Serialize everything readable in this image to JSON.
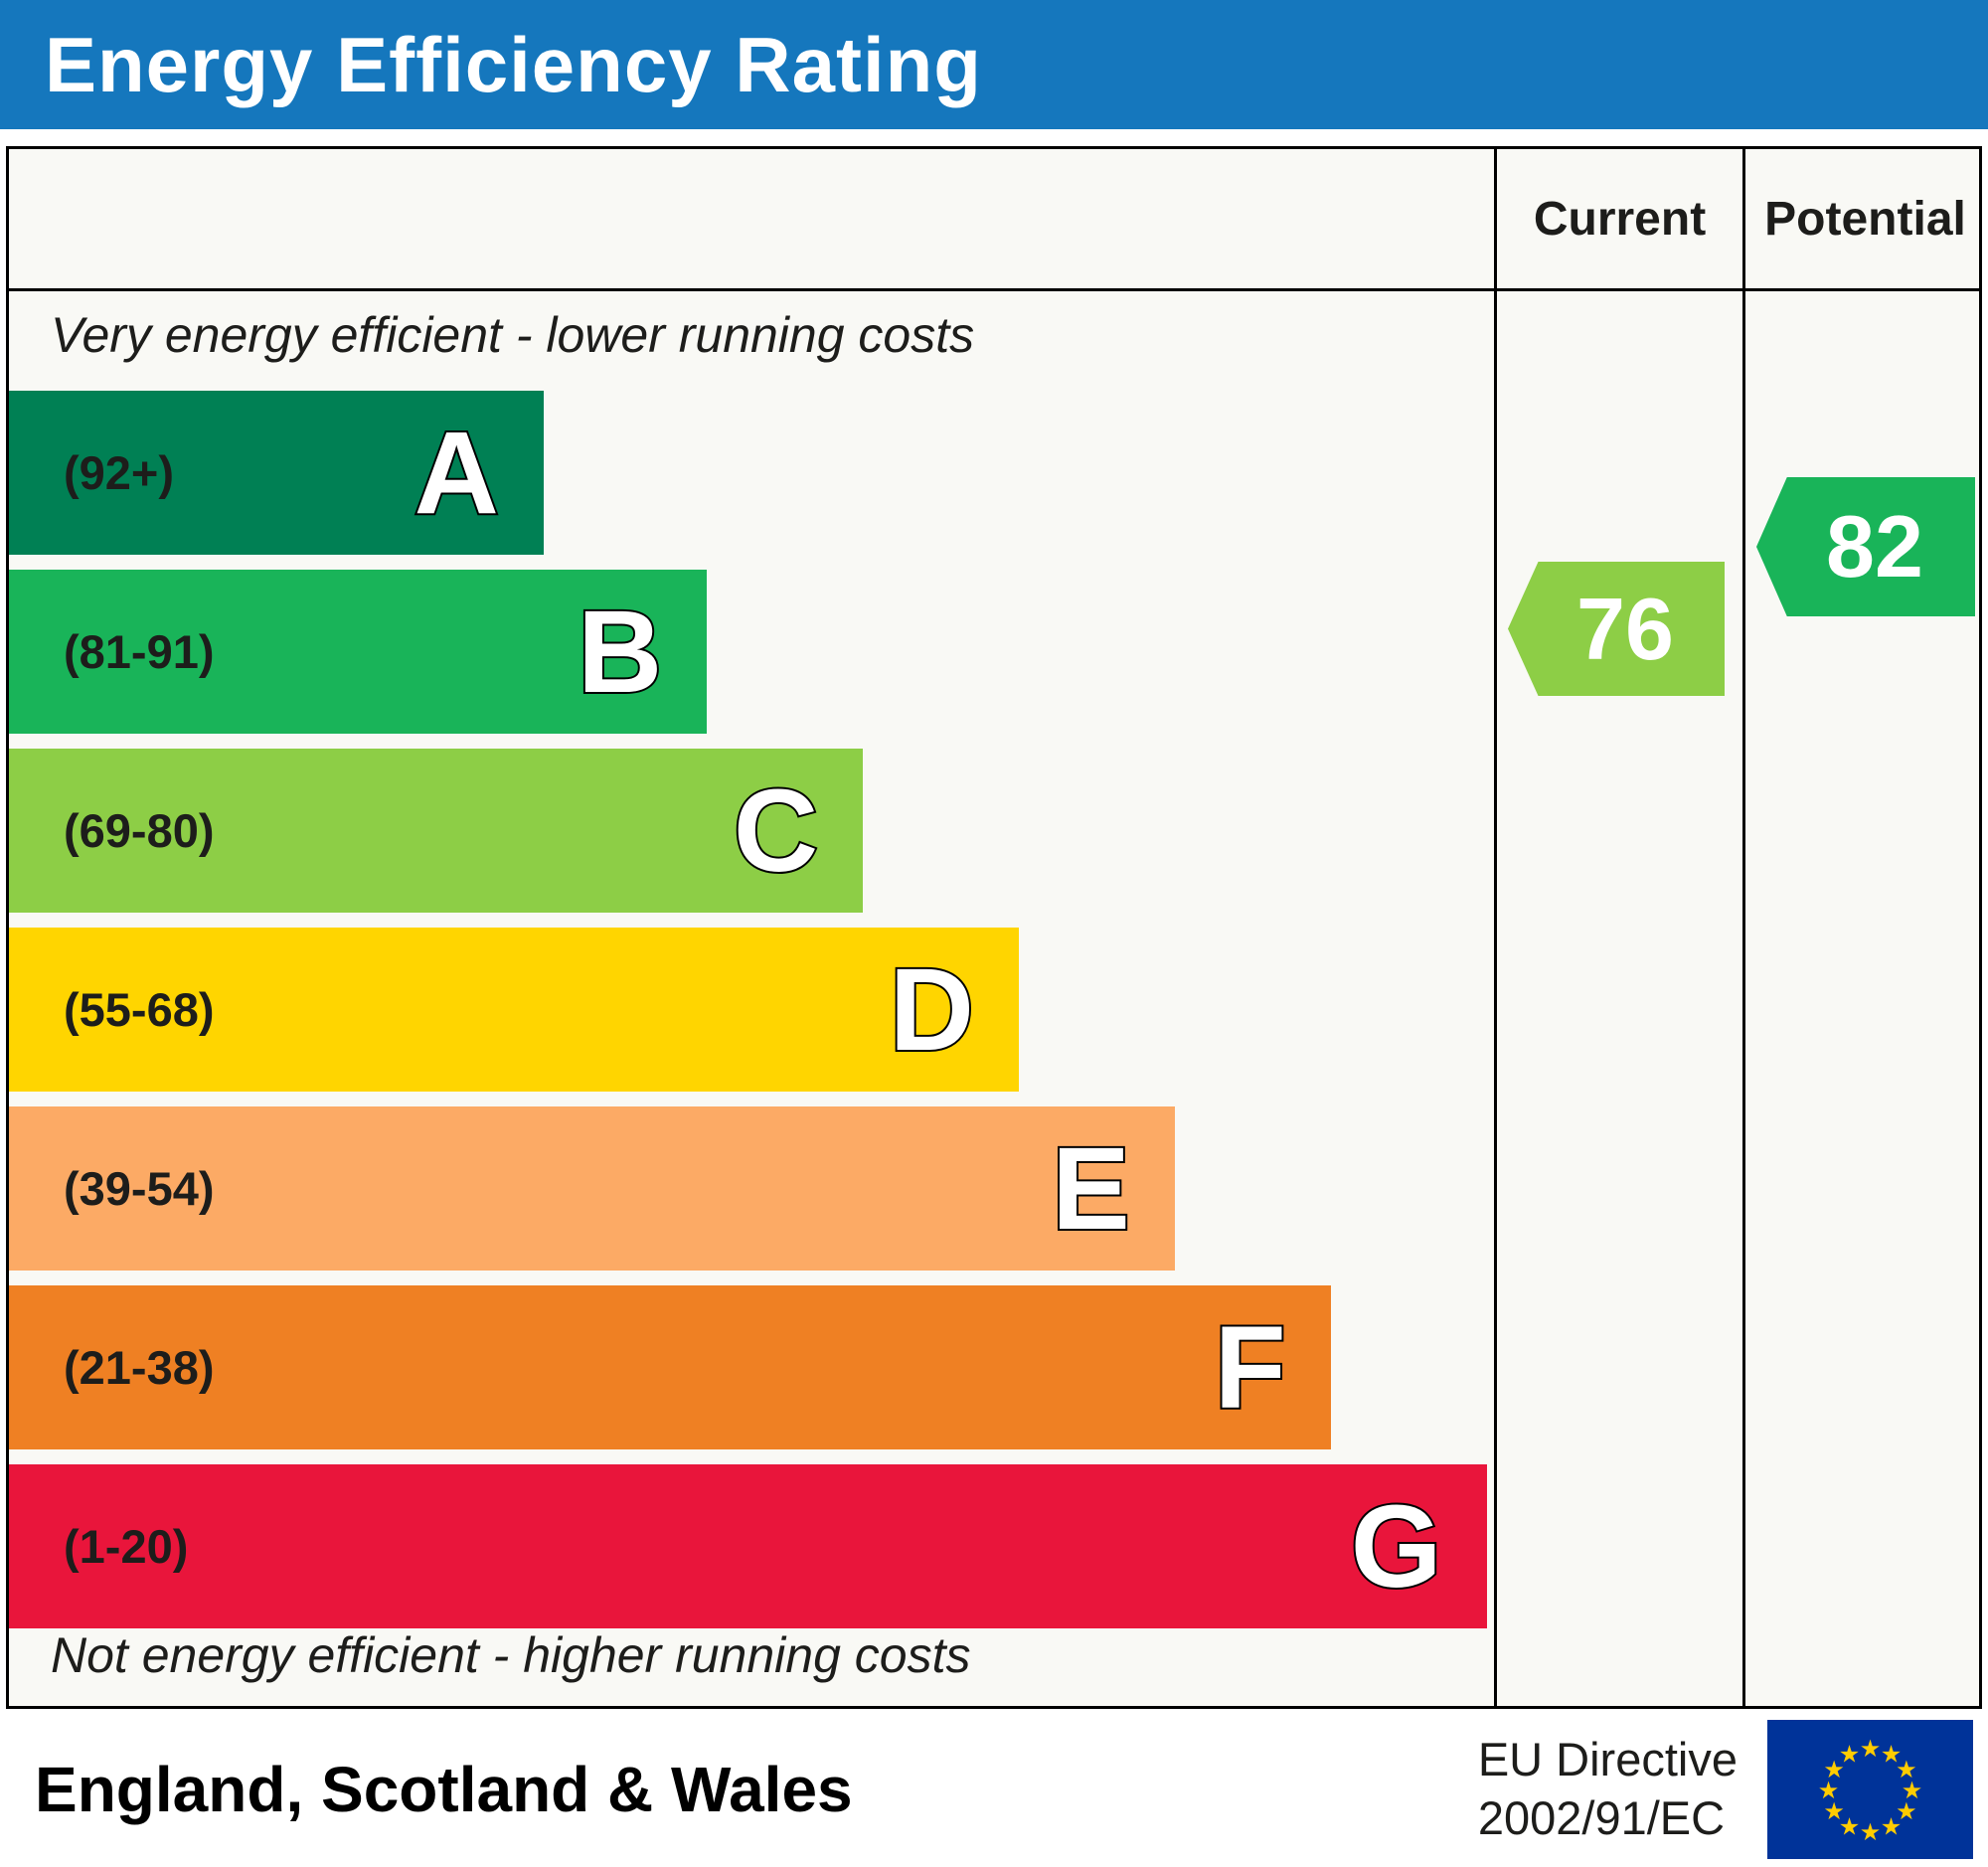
{
  "header": {
    "title": "Energy Efficiency Rating",
    "bg_color": "#1577bd"
  },
  "columns": {
    "current_label": "Current",
    "potential_label": "Potential"
  },
  "chart_data": {
    "type": "bar",
    "title": "Energy Efficiency Rating",
    "top_caption": "Very energy efficient - lower running costs",
    "bottom_caption": "Not energy efficient - higher running costs",
    "bands": [
      {
        "letter": "A",
        "range": "(92+)",
        "color": "#008054",
        "width": "36%"
      },
      {
        "letter": "B",
        "range": "(81-91)",
        "color": "#19b459",
        "width": "47%"
      },
      {
        "letter": "C",
        "range": "(69-80)",
        "color": "#8dce46",
        "width": "57.5%"
      },
      {
        "letter": "D",
        "range": "(55-68)",
        "color": "#ffd500",
        "width": "68%"
      },
      {
        "letter": "E",
        "range": "(39-54)",
        "color": "#fcaa65",
        "width": "78.5%"
      },
      {
        "letter": "F",
        "range": "(21-38)",
        "color": "#ef8023",
        "width": "89%"
      },
      {
        "letter": "G",
        "range": "(1-20)",
        "color": "#e9153b",
        "width": "99.5%"
      }
    ],
    "current": {
      "value": "76",
      "color": "#8dce46"
    },
    "potential": {
      "value": "82",
      "color": "#19b459"
    }
  },
  "footer": {
    "region": "England, Scotland & Wales",
    "directive_line1": "EU Directive",
    "directive_line2": "2002/91/EC",
    "eu_flag": {
      "bg_color": "#003399",
      "star_color": "#ffcc00"
    }
  }
}
